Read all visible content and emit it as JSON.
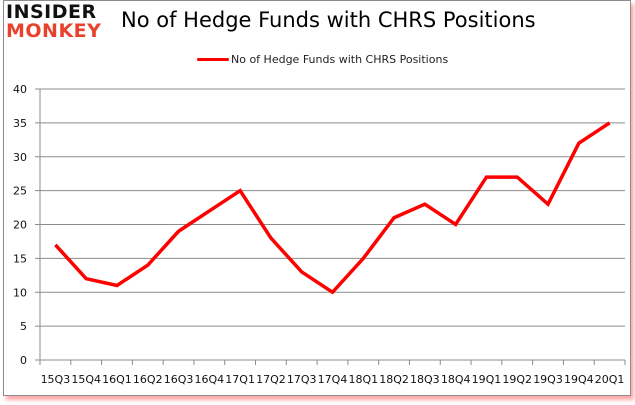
{
  "header": {
    "logo_line1": "INSIDER",
    "logo_line2": "MONKEY",
    "title": "No of Hedge Funds with CHRS Positions"
  },
  "legend": {
    "label": "No of Hedge Funds with CHRS Positions",
    "color": "#ff0000"
  },
  "chart_data": {
    "type": "line",
    "title": "No of Hedge Funds with CHRS Positions",
    "xlabel": "",
    "ylabel": "",
    "ylim": [
      0,
      40
    ],
    "yticks": [
      0,
      5,
      10,
      15,
      20,
      25,
      30,
      35,
      40
    ],
    "grid": true,
    "legend_position": "top",
    "categories": [
      "15Q3",
      "15Q4",
      "16Q1",
      "16Q2",
      "16Q3",
      "16Q4",
      "17Q1",
      "17Q2",
      "17Q3",
      "17Q4",
      "18Q1",
      "18Q2",
      "18Q3",
      "18Q4",
      "19Q1",
      "19Q2",
      "19Q3",
      "19Q4",
      "20Q1"
    ],
    "series": [
      {
        "name": "No of Hedge Funds with CHRS Positions",
        "color": "#ff0000",
        "values": [
          17,
          12,
          11,
          14,
          19,
          22,
          25,
          18,
          13,
          10,
          15,
          21,
          23,
          20,
          27,
          27,
          23,
          32,
          35
        ]
      }
    ]
  }
}
